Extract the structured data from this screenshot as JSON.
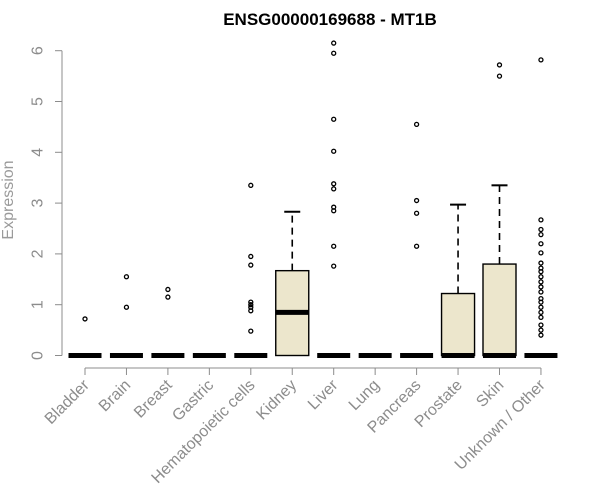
{
  "chart_data": {
    "type": "box",
    "title": "ENSG00000169688 - MT1B",
    "xlabel": "",
    "ylabel": "Expression",
    "ylim": [
      0,
      6.2
    ],
    "yticks": [
      0,
      1,
      2,
      3,
      4,
      5,
      6
    ],
    "categories": [
      "Bladder",
      "Brain",
      "Breast",
      "Gastric",
      "Hematopoietic cells",
      "Kidney",
      "Liver",
      "Lung",
      "Pancreas",
      "Prostate",
      "Skin",
      "Unknown / Other"
    ],
    "box_fill": "#ece6cc",
    "boxes": [
      {
        "min": 0,
        "q1": 0,
        "median": 0,
        "q3": 0,
        "max": 0,
        "outliers": [
          0.72
        ]
      },
      {
        "min": 0,
        "q1": 0,
        "median": 0,
        "q3": 0,
        "max": 0,
        "outliers": [
          0.95,
          1.55
        ]
      },
      {
        "min": 0,
        "q1": 0,
        "median": 0,
        "q3": 0,
        "max": 0,
        "outliers": [
          1.15,
          1.3
        ]
      },
      {
        "min": 0,
        "q1": 0,
        "median": 0,
        "q3": 0,
        "max": 0,
        "outliers": []
      },
      {
        "min": 0,
        "q1": 0,
        "median": 0,
        "q3": 0,
        "max": 0,
        "outliers": [
          0.48,
          0.88,
          0.95,
          1.0,
          1.05,
          1.78,
          1.95,
          3.35
        ]
      },
      {
        "min": 0,
        "q1": 0,
        "median": 0.85,
        "q3": 1.67,
        "max": 2.83,
        "outliers": []
      },
      {
        "min": 0,
        "q1": 0,
        "median": 0,
        "q3": 0,
        "max": 0,
        "outliers": [
          1.76,
          2.15,
          2.85,
          2.92,
          3.28,
          3.38,
          4.02,
          4.65,
          5.95,
          6.15
        ]
      },
      {
        "min": 0,
        "q1": 0,
        "median": 0,
        "q3": 0,
        "max": 0,
        "outliers": []
      },
      {
        "min": 0,
        "q1": 0,
        "median": 0,
        "q3": 0,
        "max": 0,
        "outliers": [
          2.15,
          2.8,
          3.05,
          4.55
        ]
      },
      {
        "min": 0,
        "q1": 0,
        "median": 0,
        "q3": 1.22,
        "max": 2.97,
        "outliers": []
      },
      {
        "min": 0,
        "q1": 0,
        "median": 0,
        "q3": 1.8,
        "max": 3.35,
        "outliers": [
          5.5,
          5.72
        ]
      },
      {
        "min": 0,
        "q1": 0,
        "median": 0,
        "q3": 0,
        "max": 0,
        "outliers": [
          0.4,
          0.5,
          0.6,
          0.75,
          0.85,
          0.95,
          1.05,
          1.12,
          1.25,
          1.35,
          1.45,
          1.55,
          1.65,
          1.72,
          1.82,
          2.02,
          2.2,
          2.38,
          2.48,
          2.67,
          5.82
        ]
      }
    ],
    "grid": false,
    "legend": "none"
  }
}
